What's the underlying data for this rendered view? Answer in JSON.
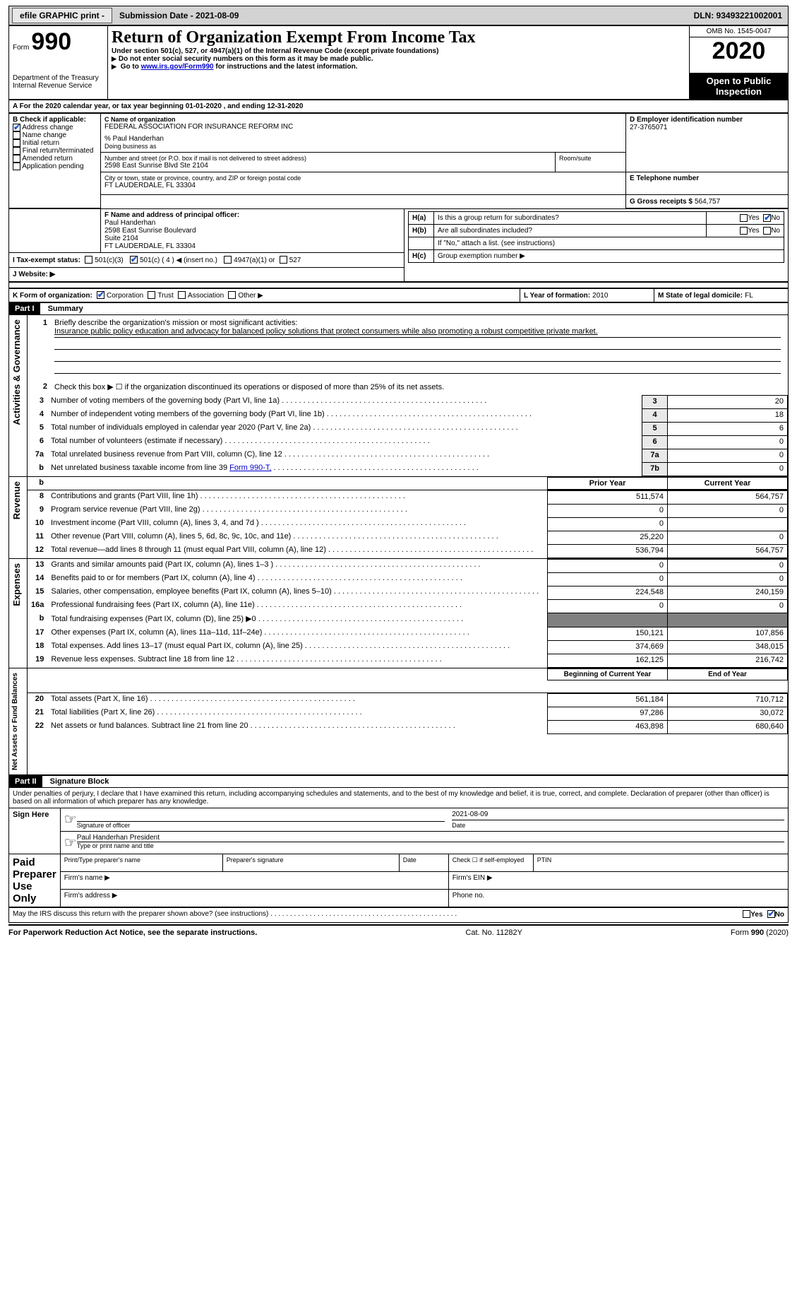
{
  "topbar": {
    "efile": "efile GRAPHIC print -",
    "submission_label": "Submission Date - 2021-08-09",
    "dln": "DLN: 93493221002001"
  },
  "header": {
    "form_label": "Form",
    "form_no": "990",
    "dept": "Department of the Treasury\nInternal Revenue Service",
    "title": "Return of Organization Exempt From Income Tax",
    "subtitle": "Under section 501(c), 527, or 4947(a)(1) of the Internal Revenue Code (except private foundations)",
    "note1": "Do not enter social security numbers on this form as it may be made public.",
    "note2_pre": "Go to ",
    "note2_link": "www.irs.gov/Form990",
    "note2_post": " for instructions and the latest information.",
    "omb": "OMB No. 1545-0047",
    "year": "2020",
    "open": "Open to Public Inspection"
  },
  "periodA": "For the 2020 calendar year, or tax year beginning 01-01-2020    , and ending 12-31-2020",
  "boxB": {
    "label": "B Check if applicable:",
    "items": [
      {
        "txt": "Address change",
        "chk": true
      },
      {
        "txt": "Name change",
        "chk": false
      },
      {
        "txt": "Initial return",
        "chk": false
      },
      {
        "txt": "Final return/terminated",
        "chk": false
      },
      {
        "txt": "Amended return",
        "chk": false
      },
      {
        "txt": "Application pending",
        "chk": false
      }
    ]
  },
  "boxC": {
    "label": "C Name of organization",
    "org": "FEDERAL ASSOCIATION FOR INSURANCE REFORM INC",
    "percent": "% Paul Handerhan",
    "dba": "Doing business as",
    "street_label": "Number and street (or P.O. box if mail is not delivered to street address)",
    "street": "2598 East Sunrise Blvd Ste 2104",
    "room_label": "Room/suite",
    "city_label": "City or town, state or province, country, and ZIP or foreign postal code",
    "city": "FT LAUDERDALE, FL  33304"
  },
  "boxD": {
    "label": "D Employer identification number",
    "val": "27-3765071"
  },
  "boxE": {
    "label": "E Telephone number",
    "val": ""
  },
  "boxG": {
    "label": "G Gross receipts $",
    "val": "564,757"
  },
  "boxF": {
    "label": "F  Name and address of principal officer:",
    "name": "Paul Handerhan",
    "addr1": "2598 East Sunrise Boulevard",
    "addr2": "Suite 2104",
    "addr3": "FT LAUDERDALE, FL  33304"
  },
  "boxH": {
    "a_label": "Is this a group return for subordinates?",
    "a_yes": "Yes",
    "a_no": "No",
    "b_label": "Are all subordinates included?",
    "note": "If \"No,\" attach a list. (see instructions)",
    "c_label": "Group exemption number ▶"
  },
  "rowI": {
    "label": "I   Tax-exempt status:",
    "o1": "501(c)(3)",
    "o2": "501(c) ( 4 ) ◀ (insert no.)",
    "o3": "4947(a)(1) or",
    "o4": "527"
  },
  "rowJ": {
    "label": "J   Website: ▶"
  },
  "rowK": {
    "label": "K Form of organization:",
    "opts": [
      "Corporation",
      "Trust",
      "Association",
      "Other ▶"
    ]
  },
  "rowL": {
    "label": "L Year of formation:",
    "val": "2010"
  },
  "rowM": {
    "label": "M State of legal domicile:",
    "val": "FL"
  },
  "part1": {
    "bar": "Part I",
    "title": "Summary",
    "vlabels": [
      "Activities & Governance",
      "Revenue",
      "Expenses",
      "Net Assets or Fund Balances"
    ],
    "l1_label": "Briefly describe the organization's mission or most significant activities:",
    "l1_text": "Insurance public policy education and advocacy for balanced policy solutions that protect consumers while also promoting a robust competitive private market.",
    "l2": "Check this box ▶ ☐  if the organization discontinued its operations or disposed of more than 25% of its net assets.",
    "rows_top": [
      {
        "n": "3",
        "t": "Number of voting members of the governing body (Part VI, line 1a)",
        "lab": "3",
        "v": "20"
      },
      {
        "n": "4",
        "t": "Number of independent voting members of the governing body (Part VI, line 1b)",
        "lab": "4",
        "v": "18"
      },
      {
        "n": "5",
        "t": "Total number of individuals employed in calendar year 2020 (Part V, line 2a)",
        "lab": "5",
        "v": "6"
      },
      {
        "n": "6",
        "t": "Total number of volunteers (estimate if necessary)",
        "lab": "6",
        "v": "0"
      },
      {
        "n": "7a",
        "t": "Total unrelated business revenue from Part VIII, column (C), line 12",
        "lab": "7a",
        "v": "0"
      },
      {
        "n": "b",
        "t": "Net unrelated business taxable income from line 39",
        "sub": "Form 990-T,",
        "lab": "7b",
        "v": "0"
      }
    ],
    "hdr_prior": "Prior Year",
    "hdr_curr": "Current Year",
    "rev": [
      {
        "n": "8",
        "t": "Contributions and grants (Part VIII, line 1h)",
        "p": "511,574",
        "c": "564,757"
      },
      {
        "n": "9",
        "t": "Program service revenue (Part VIII, line 2g)",
        "p": "0",
        "c": "0"
      },
      {
        "n": "10",
        "t": "Investment income (Part VIII, column (A), lines 3, 4, and 7d )",
        "p": "0",
        "c": ""
      },
      {
        "n": "11",
        "t": "Other revenue (Part VIII, column (A), lines 5, 6d, 8c, 9c, 10c, and 11e)",
        "p": "25,220",
        "c": "0"
      },
      {
        "n": "12",
        "t": "Total revenue—add lines 8 through 11 (must equal Part VIII, column (A), line 12)",
        "p": "536,794",
        "c": "564,757"
      }
    ],
    "exp": [
      {
        "n": "13",
        "t": "Grants and similar amounts paid (Part IX, column (A), lines 1–3 )",
        "p": "0",
        "c": "0"
      },
      {
        "n": "14",
        "t": "Benefits paid to or for members (Part IX, column (A), line 4)",
        "p": "0",
        "c": "0"
      },
      {
        "n": "15",
        "t": "Salaries, other compensation, employee benefits (Part IX, column (A), lines 5–10)",
        "p": "224,548",
        "c": "240,159"
      },
      {
        "n": "16a",
        "t": "Professional fundraising fees (Part IX, column (A), line 11e)",
        "p": "0",
        "c": "0"
      },
      {
        "n": "b",
        "t": "Total fundraising expenses (Part IX, column (D), line 25) ▶0",
        "p": "GRAY",
        "c": "GRAY"
      },
      {
        "n": "17",
        "t": "Other expenses (Part IX, column (A), lines 11a–11d, 11f–24e)",
        "p": "150,121",
        "c": "107,856"
      },
      {
        "n": "18",
        "t": "Total expenses. Add lines 13–17 (must equal Part IX, column (A), line 25)",
        "p": "374,669",
        "c": "348,015"
      },
      {
        "n": "19",
        "t": "Revenue less expenses. Subtract line 18 from line 12",
        "p": "162,125",
        "c": "216,742"
      }
    ],
    "hdr_boy": "Beginning of Current Year",
    "hdr_eoy": "End of Year",
    "net": [
      {
        "n": "20",
        "t": "Total assets (Part X, line 16)",
        "p": "561,184",
        "c": "710,712"
      },
      {
        "n": "21",
        "t": "Total liabilities (Part X, line 26)",
        "p": "97,286",
        "c": "30,072"
      },
      {
        "n": "22",
        "t": "Net assets or fund balances. Subtract line 21 from line 20",
        "p": "463,898",
        "c": "680,640"
      }
    ]
  },
  "part2": {
    "bar": "Part II",
    "title": "Signature Block",
    "decl": "Under penalties of perjury, I declare that I have examined this return, including accompanying schedules and statements, and to the best of my knowledge and belief, it is true, correct, and complete. Declaration of preparer (other than officer) is based on all information of which preparer has any knowledge.",
    "signhere": "Sign Here",
    "sigoff": "Signature of officer",
    "sigdate": "Date",
    "sigdateval": "2021-08-09",
    "typed": "Paul Handerhan  President",
    "typedlbl": "Type or print name and title",
    "paid": "Paid Preparer Use Only",
    "h1": "Print/Type preparer's name",
    "h2": "Preparer's signature",
    "h3": "Date",
    "h4": "Check ☐ if self-employed",
    "h5": "PTIN",
    "firmname": "Firm's name   ▶",
    "firmein": "Firm's EIN ▶",
    "firmaddr": "Firm's address ▶",
    "phone": "Phone no."
  },
  "bottom": {
    "q": "May the IRS discuss this return with the preparer shown above? (see instructions)",
    "yes": "Yes",
    "no": "No"
  },
  "footer": {
    "l": "For Paperwork Reduction Act Notice, see the separate instructions.",
    "c": "Cat. No. 11282Y",
    "r": "Form 990 (2020)"
  }
}
